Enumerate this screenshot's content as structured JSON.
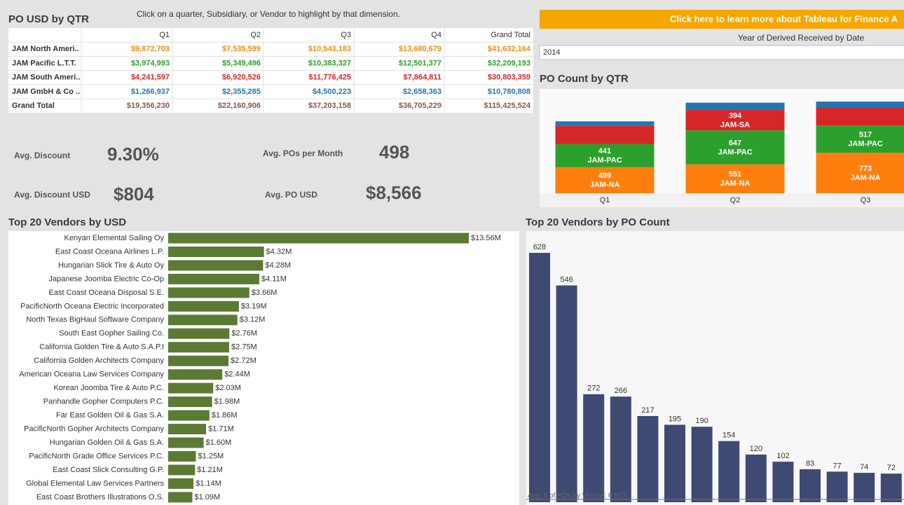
{
  "header": {
    "title": "PO USD by QTR",
    "instruction": "Click on a quarter, Subsidiary, or Vendor to highlight by that dimension."
  },
  "table": {
    "columns": [
      "Q1",
      "Q2",
      "Q3",
      "Q4",
      "Grand Total"
    ],
    "rows": [
      [
        "JAM North Ameri..",
        "$9,872,703",
        "$7,535,599",
        "$10,543,183",
        "$13,680,679",
        "$41,632,164"
      ],
      [
        "JAM Pacific L.T.T.",
        "$3,974,993",
        "$5,349,496",
        "$10,383,327",
        "$12,501,377",
        "$32,209,193"
      ],
      [
        "JAM South Ameri..",
        "$4,241,597",
        "$6,920,526",
        "$11,776,425",
        "$7,864,811",
        "$30,803,359"
      ],
      [
        "JAM GmbH & Co ..",
        "$1,266,937",
        "$2,355,285",
        "$4,500,223",
        "$2,658,363",
        "$10,780,808"
      ],
      [
        "Grand Total",
        "$19,356,230",
        "$22,160,906",
        "$37,203,158",
        "$36,705,229",
        "$115,425,524"
      ]
    ],
    "row_colors": [
      "#f28a1a",
      "#2ca02c",
      "#d62728",
      "#1f77b4",
      "#8c564b"
    ]
  },
  "kpis": [
    {
      "label": "Avg. Discount",
      "value": "9.30%"
    },
    {
      "label": "Avg. Discount USD",
      "value": "$804"
    },
    {
      "label": "Avg. POs per Month",
      "value": "498"
    },
    {
      "label": "Avg. PO USD",
      "value": "$8,566"
    }
  ],
  "banner": "Click here to learn more about Tableau for Finance A",
  "filter": {
    "label": "Year of Derived Received by Date",
    "value": "2014"
  },
  "chart_data": [
    {
      "type": "stacked_bar",
      "title": "PO Count by QTR",
      "categories": [
        "Q1",
        "Q2",
        "Q3"
      ],
      "series": [
        {
          "name": "JAM-NA",
          "color": "#ff7f0e",
          "values": [
            499,
            551,
            773
          ]
        },
        {
          "name": "JAM-PAC",
          "color": "#2ca02c",
          "values": [
            441,
            647,
            517
          ]
        },
        {
          "name": "JAM-SA",
          "color": "#d62728",
          "values": [
            350,
            394,
            350
          ],
          "value_labels": [
            null,
            "394",
            null
          ]
        },
        {
          "color": "#1f77b4",
          "values": [
            80,
            134,
            107
          ],
          "value_labels": [
            null,
            null,
            null
          ]
        }
      ]
    },
    {
      "type": "hbar",
      "title": "Top 20 Vendors by USD",
      "color": "#5b7a33",
      "categories": [
        "Kenyan Elemental Sailing Oy",
        "East Coast Oceana Airlines L.P.",
        "Hungarian Slick Tire & Auto Oy",
        "Japanese Joomba Electric Co-Op",
        "East Coast Oceana Disposal S.E.",
        "PacificNorth Oceana Electric Incorporated",
        "North Texas BigHaul Software Company",
        "South East Gopher Sailing Co.",
        "California Golden Tire & Auto S.A.P.I",
        "California Golden Architects Company",
        "American Oceana Law Services Company",
        "Korean Joomba Tire & Auto P.C.",
        "Panhandle Gopher Computers P.C.",
        "Far East Golden Oil & Gas S.A.",
        "PacificNorth Gopher Architects Company",
        "Hungarian Golden Oil & Gas S.A.",
        "PacificNorth Grade Office Services P.C.",
        "East Coast Slick Consulting G.P.",
        "Global Elemental Law Services Partners",
        "East Coast Brothers Illustrations O.S."
      ],
      "values": [
        13.56,
        4.32,
        4.28,
        4.11,
        3.66,
        3.19,
        3.12,
        2.76,
        2.75,
        2.72,
        2.44,
        2.03,
        1.98,
        1.86,
        1.71,
        1.6,
        1.25,
        1.21,
        1.14,
        1.09
      ],
      "value_labels": [
        "$13.56M",
        "$4.32M",
        "$4.28M",
        "$4.11M",
        "$3.66M",
        "$3.19M",
        "$3.12M",
        "$2.76M",
        "$2.75M",
        "$2.72M",
        "$2.44M",
        "$2.03M",
        "$1.98M",
        "$1.86M",
        "$1.71M",
        "$1.60M",
        "$1.25M",
        "$1.21M",
        "$1.14M",
        "$1.09M"
      ]
    },
    {
      "type": "bar",
      "title": "Top 20 Vendors by PO Count",
      "color": "#3f4a72",
      "values": [
        628,
        546,
        272,
        266,
        217,
        195,
        190,
        154,
        120,
        102,
        83,
        77,
        74,
        72
      ],
      "reference_line": {
        "label": "Avg. # of POs by Vendor: 6.973",
        "value": 6.973
      }
    }
  ]
}
